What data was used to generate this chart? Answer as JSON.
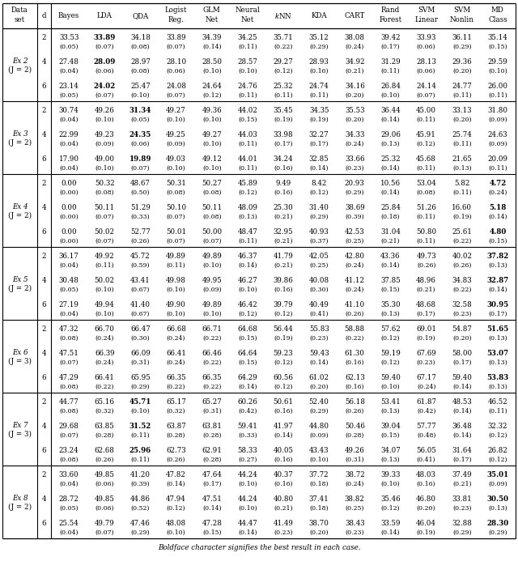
{
  "rows": [
    {
      "eg": "Ex 2",
      "jval": "J = 2",
      "d": "2",
      "vals": [
        "33.53",
        "33.89",
        "34.18",
        "33.89",
        "34.39",
        "34.25",
        "35.71",
        "35.12",
        "38.08",
        "39.42",
        "33.93",
        "36.11",
        "35.14"
      ],
      "stds": [
        "(0.05)",
        "(0.07)",
        "(0.08)",
        "(0.07)",
        "(0.14)",
        "(0.11)",
        "(0.22)",
        "(0.29)",
        "(0.24)",
        "(0.17)",
        "(0.06)",
        "(0.29)",
        "(0.15)"
      ],
      "bold_idx": 1
    },
    {
      "eg": "",
      "jval": "",
      "d": "4",
      "vals": [
        "27.48",
        "28.09",
        "28.97",
        "28.10",
        "28.50",
        "28.57",
        "29.27",
        "28.93",
        "34.92",
        "31.29",
        "28.13",
        "29.36",
        "29.59"
      ],
      "stds": [
        "(0.04)",
        "(0.06)",
        "(0.08)",
        "(0.06)",
        "(0.10)",
        "(0.10)",
        "(0.12)",
        "(0.16)",
        "(0.21)",
        "(0.11)",
        "(0.06)",
        "(0.20)",
        "(0.10)"
      ],
      "bold_idx": 1
    },
    {
      "eg": "",
      "jval": "",
      "d": "6",
      "vals": [
        "23.14",
        "24.02",
        "25.47",
        "24.08",
        "24.64",
        "24.76",
        "25.32",
        "24.74",
        "34.16",
        "26.84",
        "24.14",
        "24.77",
        "26.00"
      ],
      "stds": [
        "(0.05)",
        "(0.07)",
        "(0.10)",
        "(0.07)",
        "(0.12)",
        "(0.11)",
        "(0.11)",
        "(0.11)",
        "(0.20)",
        "(0.10)",
        "(0.07)",
        "(0.11)",
        "(0.11)"
      ],
      "bold_idx": 1
    },
    {
      "eg": "Ex 3",
      "jval": "J = 2",
      "d": "2",
      "vals": [
        "30.74",
        "49.26",
        "31.34",
        "49.27",
        "49.36",
        "44.02",
        "35.45",
        "34.35",
        "35.53",
        "36.44",
        "45.00",
        "33.13",
        "31.80"
      ],
      "stds": [
        "(0.04)",
        "(0.10)",
        "(0.05)",
        "(0.10)",
        "(0.10)",
        "(0.15)",
        "(0.19)",
        "(0.19)",
        "(0.20)",
        "(0.14)",
        "(0.11)",
        "(0.20)",
        "(0.09)"
      ],
      "bold_idx": 2
    },
    {
      "eg": "",
      "jval": "",
      "d": "4",
      "vals": [
        "22.99",
        "49.23",
        "24.35",
        "49.25",
        "49.27",
        "44.03",
        "33.98",
        "32.27",
        "34.33",
        "29.06",
        "45.91",
        "25.74",
        "24.63"
      ],
      "stds": [
        "(0.04)",
        "(0.09)",
        "(0.06)",
        "(0.09)",
        "(0.10)",
        "(0.11)",
        "(0.17)",
        "(0.17)",
        "(0.24)",
        "(0.13)",
        "(0.12)",
        "(0.11)",
        "(0.09)"
      ],
      "bold_idx": 2
    },
    {
      "eg": "",
      "jval": "",
      "d": "6",
      "vals": [
        "17.90",
        "49.00",
        "19.89",
        "49.03",
        "49.12",
        "44.01",
        "34.24",
        "32.85",
        "33.66",
        "25.32",
        "45.68",
        "21.65",
        "20.09"
      ],
      "stds": [
        "(0.04)",
        "(0.10)",
        "(0.07)",
        "(0.10)",
        "(0.10)",
        "(0.11)",
        "(0.16)",
        "(0.14)",
        "(0.23)",
        "(0.14)",
        "(0.11)",
        "(0.13)",
        "(0.11)"
      ],
      "bold_idx": 2
    },
    {
      "eg": "Ex 4",
      "jval": "J = 2",
      "d": "2",
      "vals": [
        "0.00",
        "50.32",
        "48.67",
        "50.31",
        "50.27",
        "45.89",
        "9.49",
        "8.42",
        "20.93",
        "10.56",
        "53.04",
        "5.82",
        "4.72"
      ],
      "stds": [
        "(0.00)",
        "(0.08)",
        "(0.50)",
        "(0.08)",
        "(0.08)",
        "(0.12)",
        "(0.16)",
        "(0.12)",
        "(0.29)",
        "(0.14)",
        "(0.08)",
        "(0.11)",
        "(0.24)"
      ],
      "bold_idx": 12
    },
    {
      "eg": "",
      "jval": "",
      "d": "4",
      "vals": [
        "0.00",
        "50.11",
        "51.29",
        "50.10",
        "50.11",
        "48.09",
        "25.30",
        "31.40",
        "38.69",
        "25.84",
        "51.26",
        "16.60",
        "5.18"
      ],
      "stds": [
        "(0.00)",
        "(0.07)",
        "(0.33)",
        "(0.07)",
        "(0.08)",
        "(0.13)",
        "(0.21)",
        "(0.29)",
        "(0.39)",
        "(0.18)",
        "(0.11)",
        "(0.19)",
        "(0.14)"
      ],
      "bold_idx": 12
    },
    {
      "eg": "",
      "jval": "",
      "d": "6",
      "vals": [
        "0.00",
        "50.02",
        "52.77",
        "50.01",
        "50.00",
        "48.47",
        "32.95",
        "40.93",
        "42.53",
        "31.04",
        "50.80",
        "25.61",
        "4.80"
      ],
      "stds": [
        "(0.00)",
        "(0.07)",
        "(0.26)",
        "(0.07)",
        "(0.07)",
        "(0.11)",
        "(0.21)",
        "(0.37)",
        "(0.25)",
        "(0.21)",
        "(0.11)",
        "(0.22)",
        "(0.15)"
      ],
      "bold_idx": 12
    },
    {
      "eg": "Ex 5",
      "jval": "J = 2",
      "d": "2",
      "vals": [
        "36.17",
        "49.92",
        "45.72",
        "49.89",
        "49.89",
        "46.37",
        "41.79",
        "42.05",
        "42.80",
        "43.36",
        "49.73",
        "40.02",
        "37.82"
      ],
      "stds": [
        "(0.04)",
        "(0.11)",
        "(0.59)",
        "(0.11)",
        "(0.10)",
        "(0.14)",
        "(0.21)",
        "(0.25)",
        "(0.24)",
        "(0.14)",
        "(0.26)",
        "(0.26)",
        "(0.13)"
      ],
      "bold_idx": 12
    },
    {
      "eg": "",
      "jval": "",
      "d": "4",
      "vals": [
        "30.48",
        "50.02",
        "43.41",
        "49.98",
        "49.95",
        "46.27",
        "39.86",
        "40.08",
        "41.12",
        "37.85",
        "48.96",
        "34.83",
        "32.87"
      ],
      "stds": [
        "(0.05)",
        "(0.10)",
        "(0.67)",
        "(0.10)",
        "(0.09)",
        "(0.10)",
        "(0.16)",
        "(0.30)",
        "(0.24)",
        "(0.15)",
        "(0.21)",
        "(0.22)",
        "(0.14)"
      ],
      "bold_idx": 12
    },
    {
      "eg": "",
      "jval": "",
      "d": "6",
      "vals": [
        "27.19",
        "49.94",
        "41.40",
        "49.90",
        "49.89",
        "46.42",
        "39.79",
        "40.49",
        "41.10",
        "35.30",
        "48.68",
        "32.58",
        "30.95"
      ],
      "stds": [
        "(0.04)",
        "(0.10)",
        "(0.67)",
        "(0.10)",
        "(0.10)",
        "(0.12)",
        "(0.12)",
        "(0.41)",
        "(0.26)",
        "(0.13)",
        "(0.17)",
        "(0.23)",
        "(0.17)"
      ],
      "bold_idx": 12
    },
    {
      "eg": "Ex 6",
      "jval": "J = 3",
      "d": "2",
      "vals": [
        "47.32",
        "66.70",
        "66.47",
        "66.68",
        "66.71",
        "64.68",
        "56.44",
        "55.83",
        "58.88",
        "57.62",
        "69.01",
        "54.87",
        "51.65"
      ],
      "stds": [
        "(0.08)",
        "(0.24)",
        "(0.30)",
        "(0.24)",
        "(0.22)",
        "(0.15)",
        "(0.19)",
        "(0.23)",
        "(0.22)",
        "(0.12)",
        "(0.19)",
        "(0.20)",
        "(0.13)"
      ],
      "bold_idx": 12
    },
    {
      "eg": "",
      "jval": "",
      "d": "4",
      "vals": [
        "47.51",
        "66.39",
        "66.09",
        "66.41",
        "66.46",
        "64.64",
        "59.23",
        "59.43",
        "61.30",
        "59.19",
        "67.69",
        "58.00",
        "53.07"
      ],
      "stds": [
        "(0.07)",
        "(0.24)",
        "(0.31)",
        "(0.24)",
        "(0.22)",
        "(0.15)",
        "(0.12)",
        "(0.14)",
        "(0.16)",
        "(0.12)",
        "(0.23)",
        "(0.17)",
        "(0.13)"
      ],
      "bold_idx": 12
    },
    {
      "eg": "",
      "jval": "",
      "d": "6",
      "vals": [
        "47.29",
        "66.41",
        "65.95",
        "66.35",
        "66.35",
        "64.29",
        "60.56",
        "61.02",
        "62.13",
        "59.40",
        "67.17",
        "59.40",
        "53.83"
      ],
      "stds": [
        "(0.08)",
        "(0.22)",
        "(0.29)",
        "(0.22)",
        "(0.22)",
        "(0.14)",
        "(0.12)",
        "(0.20)",
        "(0.16)",
        "(0.10)",
        "(0.24)",
        "(0.14)",
        "(0.13)"
      ],
      "bold_idx": 12
    },
    {
      "eg": "Ex 7",
      "jval": "J = 3",
      "d": "2",
      "vals": [
        "44.77",
        "65.16",
        "45.71",
        "65.17",
        "65.27",
        "60.26",
        "50.61",
        "52.40",
        "56.18",
        "53.41",
        "61.87",
        "48.53",
        "46.52"
      ],
      "stds": [
        "(0.08)",
        "(0.32)",
        "(0.10)",
        "(0.32)",
        "(0.31)",
        "(0.42)",
        "(0.16)",
        "(0.29)",
        "(0.26)",
        "(0.13)",
        "(0.42)",
        "(0.14)",
        "(0.11)"
      ],
      "bold_idx": 2
    },
    {
      "eg": "",
      "jval": "",
      "d": "4",
      "vals": [
        "29.68",
        "63.85",
        "31.52",
        "63.87",
        "63.81",
        "59.41",
        "41.97",
        "44.80",
        "50.46",
        "39.04",
        "57.77",
        "36.48",
        "32.32"
      ],
      "stds": [
        "(0.07)",
        "(0.28)",
        "(0.11)",
        "(0.28)",
        "(0.28)",
        "(0.33)",
        "(0.14)",
        "(0.09)",
        "(0.28)",
        "(0.15)",
        "(0.48)",
        "(0.14)",
        "(0.12)"
      ],
      "bold_idx": 2
    },
    {
      "eg": "",
      "jval": "",
      "d": "6",
      "vals": [
        "23.24",
        "62.68",
        "25.96",
        "62.73",
        "62.91",
        "58.33",
        "40.05",
        "43.43",
        "49.26",
        "34.07",
        "56.05",
        "31.64",
        "26.82"
      ],
      "stds": [
        "(0.08)",
        "(0.26)",
        "(0.11)",
        "(0.26)",
        "(0.28)",
        "(0.27)",
        "(0.16)",
        "(0.10)",
        "(0.31)",
        "(0.13)",
        "(0.41)",
        "(0.17)",
        "(0.12)"
      ],
      "bold_idx": 2
    },
    {
      "eg": "Ex 8",
      "jval": "J = 2",
      "d": "2",
      "vals": [
        "33.60",
        "49.85",
        "41.20",
        "47.82",
        "47.64",
        "44.24",
        "40.37",
        "37.72",
        "38.72",
        "39.33",
        "48.03",
        "37.49",
        "35.01"
      ],
      "stds": [
        "(0.04)",
        "(0.06)",
        "(0.39)",
        "(0.14)",
        "(0.17)",
        "(0.10)",
        "(0.16)",
        "(0.18)",
        "(0.24)",
        "(0.10)",
        "(0.16)",
        "(0.21)",
        "(0.09)"
      ],
      "bold_idx": 12
    },
    {
      "eg": "",
      "jval": "",
      "d": "4",
      "vals": [
        "28.72",
        "49.85",
        "44.86",
        "47.94",
        "47.51",
        "44.24",
        "40.80",
        "37.41",
        "38.82",
        "35.46",
        "46.80",
        "33.81",
        "30.50"
      ],
      "stds": [
        "(0.05)",
        "(0.06)",
        "(0.52)",
        "(0.12)",
        "(0.14)",
        "(0.10)",
        "(0.21)",
        "(0.18)",
        "(0.25)",
        "(0.12)",
        "(0.20)",
        "(0.23)",
        "(0.13)"
      ],
      "bold_idx": 12
    },
    {
      "eg": "",
      "jval": "",
      "d": "6",
      "vals": [
        "25.54",
        "49.79",
        "47.46",
        "48.08",
        "47.28",
        "44.47",
        "41.49",
        "38.70",
        "38.43",
        "33.59",
        "46.04",
        "32.88",
        "28.30"
      ],
      "stds": [
        "(0.04)",
        "(0.07)",
        "(0.29)",
        "(0.10)",
        "(0.15)",
        "(0.14)",
        "(0.23)",
        "(0.20)",
        "(0.23)",
        "(0.14)",
        "(0.19)",
        "(0.29)",
        "(0.29)"
      ],
      "bold_idx": 12
    }
  ],
  "example_groups": [
    {
      "eg": "Ex 2",
      "jval": "J = 2",
      "rows": [
        0,
        1,
        2
      ]
    },
    {
      "eg": "Ex 3",
      "jval": "J = 2",
      "rows": [
        3,
        4,
        5
      ]
    },
    {
      "eg": "Ex 4",
      "jval": "J = 2",
      "rows": [
        6,
        7,
        8
      ]
    },
    {
      "eg": "Ex 5",
      "jval": "J = 2",
      "rows": [
        9,
        10,
        11
      ]
    },
    {
      "eg": "Ex 6",
      "jval": "J = 3",
      "rows": [
        12,
        13,
        14
      ]
    },
    {
      "eg": "Ex 7",
      "jval": "J = 3",
      "rows": [
        15,
        16,
        17
      ]
    },
    {
      "eg": "Ex 8",
      "jval": "J = 2",
      "rows": [
        18,
        19,
        20
      ]
    }
  ],
  "footer": "Boldface character signifies the best result in each case."
}
